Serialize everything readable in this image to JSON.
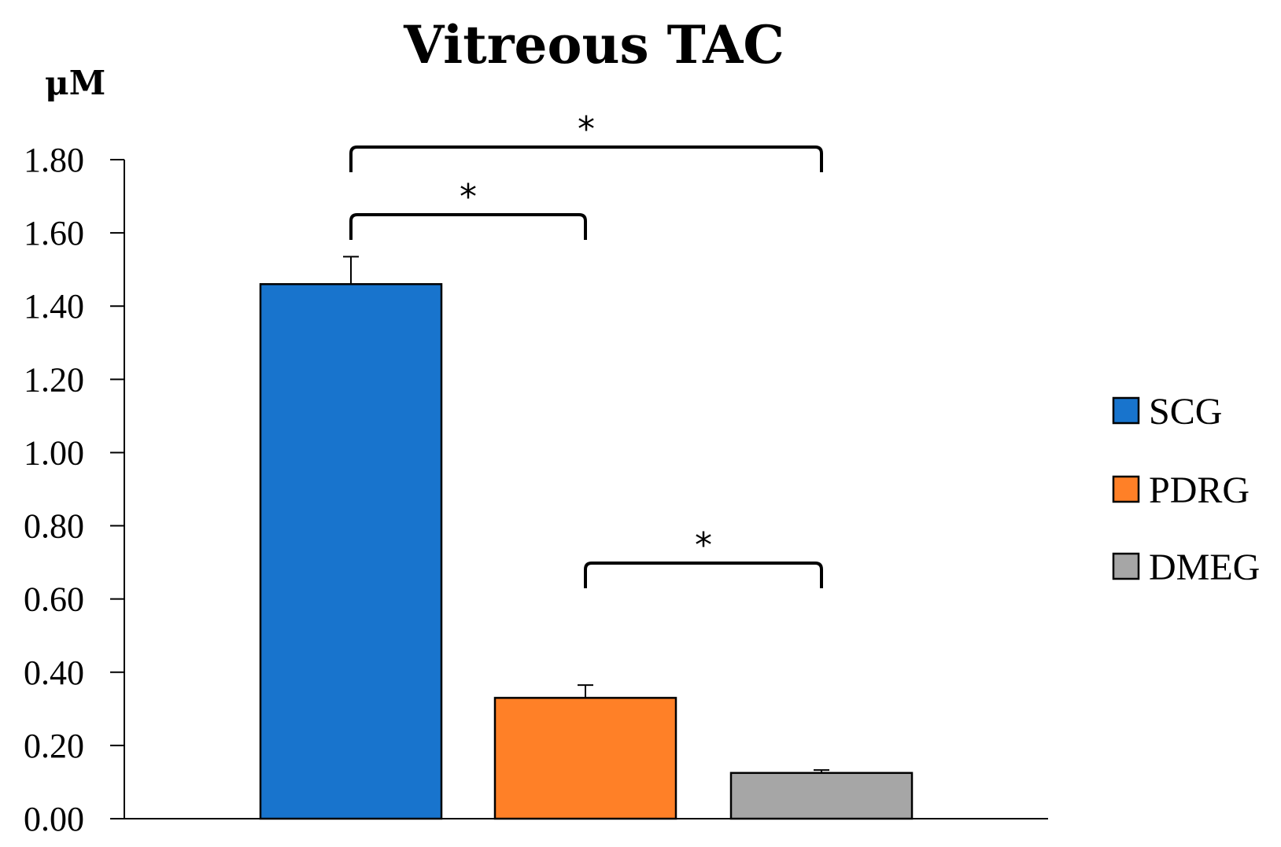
{
  "chart_data": {
    "type": "bar",
    "title": "Vitreous TAC",
    "ylabel": "μM",
    "xlabel": "",
    "ylim": [
      0,
      1.8
    ],
    "yticks": [
      "0.00",
      "0.20",
      "0.40",
      "0.60",
      "0.80",
      "1.00",
      "1.20",
      "1.40",
      "1.60",
      "1.80"
    ],
    "categories": [
      "SCG",
      "PDRG",
      "DMEG"
    ],
    "values": [
      1.46,
      0.33,
      0.125
    ],
    "errors": [
      0.075,
      0.035,
      0.008
    ],
    "colors": [
      "#1874CD",
      "#FF8027",
      "#A6A6A6"
    ],
    "legend": {
      "position": "right",
      "entries": [
        "SCG",
        "PDRG",
        "DMEG"
      ]
    },
    "significance": [
      {
        "from": "SCG",
        "to": "DMEG",
        "label": "*"
      },
      {
        "from": "SCG",
        "to": "PDRG",
        "label": "*"
      },
      {
        "from": "PDRG",
        "to": "DMEG",
        "label": "*"
      }
    ],
    "grid": false
  }
}
